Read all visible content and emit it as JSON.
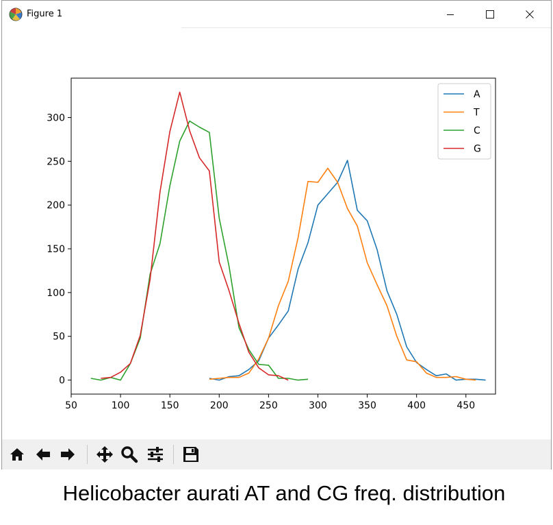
{
  "window": {
    "title": "Figure 1"
  },
  "toolbar": {
    "buttons": [
      {
        "name": "home",
        "icon": "home-icon"
      },
      {
        "name": "back",
        "icon": "arrow-left-icon"
      },
      {
        "name": "forward",
        "icon": "arrow-right-icon"
      },
      {
        "name": "pan",
        "icon": "move-icon"
      },
      {
        "name": "zoom",
        "icon": "magnifier-icon"
      },
      {
        "name": "configure-subplots",
        "icon": "sliders-icon"
      },
      {
        "name": "save",
        "icon": "floppy-disk-icon"
      }
    ]
  },
  "caption": "Helicobacter aurati AT and CG freq. distribution",
  "chart_data": {
    "type": "line",
    "title": "",
    "xlabel": "",
    "ylabel": "",
    "xlim": [
      50,
      480
    ],
    "ylim": [
      -16,
      345
    ],
    "xticks": [
      50,
      100,
      150,
      200,
      250,
      300,
      350,
      400,
      450
    ],
    "yticks": [
      0,
      50,
      100,
      150,
      200,
      250,
      300
    ],
    "grid": false,
    "legend_position": "top-right",
    "series": [
      {
        "name": "A",
        "color": "#1f77b4",
        "x": [
          190,
          200,
          210,
          220,
          230,
          240,
          250,
          260,
          270,
          280,
          290,
          300,
          310,
          320,
          330,
          340,
          350,
          360,
          370,
          380,
          390,
          400,
          410,
          420,
          430,
          440,
          450,
          460,
          470
        ],
        "y": [
          2,
          0,
          4,
          5,
          12,
          22,
          48,
          63,
          79,
          127,
          157,
          200,
          213,
          226,
          251,
          194,
          182,
          149,
          102,
          75,
          38,
          20,
          12,
          5,
          7,
          0,
          1,
          1,
          0
        ]
      },
      {
        "name": "T",
        "color": "#ff7f0e",
        "x": [
          190,
          200,
          210,
          220,
          230,
          240,
          250,
          260,
          270,
          280,
          290,
          300,
          310,
          320,
          330,
          340,
          350,
          360,
          370,
          380,
          390,
          400,
          410,
          420,
          430,
          440,
          450,
          460
        ],
        "y": [
          1,
          2,
          3,
          3,
          8,
          24,
          48,
          85,
          113,
          163,
          227,
          226,
          242,
          226,
          196,
          176,
          134,
          109,
          85,
          50,
          23,
          21,
          8,
          3,
          3,
          4,
          1,
          0
        ]
      },
      {
        "name": "C",
        "color": "#2ca02c",
        "x": [
          70,
          80,
          90,
          100,
          110,
          120,
          130,
          140,
          150,
          160,
          170,
          180,
          190,
          200,
          210,
          220,
          230,
          240,
          250,
          260,
          270,
          280,
          290
        ],
        "y": [
          2,
          0,
          3,
          0,
          19,
          48,
          121,
          156,
          222,
          273,
          296,
          289,
          283,
          185,
          130,
          60,
          35,
          18,
          17,
          2,
          2,
          0,
          1
        ]
      },
      {
        "name": "G",
        "color": "#d62728",
        "x": [
          80,
          90,
          100,
          110,
          120,
          130,
          140,
          150,
          160,
          170,
          180,
          190,
          200,
          210,
          220,
          230,
          240,
          250,
          260,
          270
        ],
        "y": [
          2,
          3,
          9,
          19,
          51,
          115,
          215,
          284,
          329,
          285,
          254,
          239,
          135,
          102,
          65,
          32,
          14,
          6,
          5,
          0
        ]
      }
    ]
  }
}
